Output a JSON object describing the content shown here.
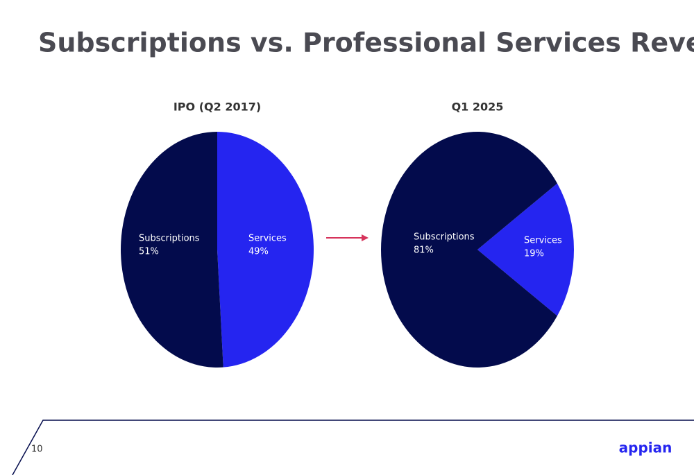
{
  "title": "Subscriptions vs. Professional Services Revenues.",
  "page_number": "10",
  "logo": "appian",
  "chart_data": [
    {
      "type": "pie",
      "title": "IPO (Q2 2017)",
      "categories": [
        "Subscriptions",
        "Services"
      ],
      "values": [
        51,
        49
      ],
      "value_labels": [
        "51%",
        "49%"
      ],
      "colors": [
        "#030b4c",
        "#2525f0"
      ]
    },
    {
      "type": "pie",
      "title": "Q1 2025",
      "categories": [
        "Subscriptions",
        "Services"
      ],
      "values": [
        81,
        19
      ],
      "value_labels": [
        "81%",
        "19%"
      ],
      "colors": [
        "#030b4c",
        "#2525f0"
      ]
    }
  ]
}
